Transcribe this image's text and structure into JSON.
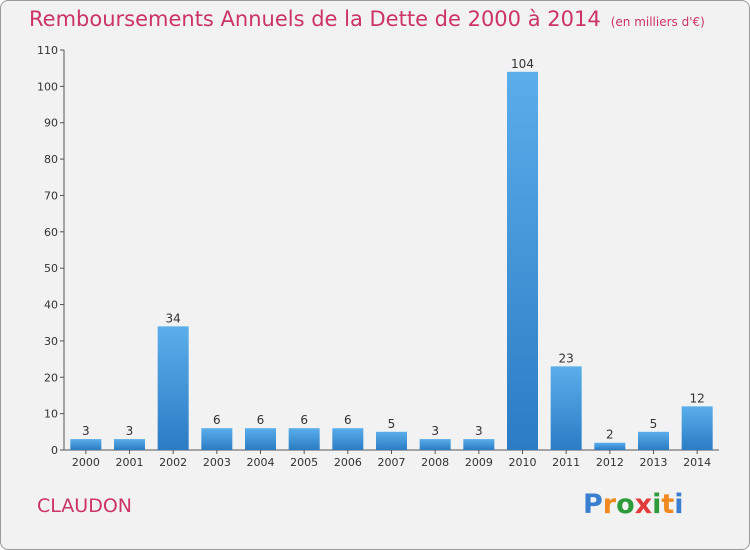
{
  "chart_data": {
    "type": "bar",
    "title": "Remboursements Annuels de la Dette de 2000 à 2014",
    "unit": "(en milliers d'€)",
    "categories": [
      "2000",
      "2001",
      "2002",
      "2003",
      "2004",
      "2005",
      "2006",
      "2007",
      "2008",
      "2009",
      "2010",
      "2011",
      "2012",
      "2013",
      "2014"
    ],
    "values": [
      3,
      3,
      34,
      6,
      6,
      6,
      6,
      5,
      3,
      3,
      104,
      23,
      2,
      5,
      12
    ],
    "ylim": [
      0,
      110
    ],
    "yticks": [
      0,
      10,
      20,
      30,
      40,
      50,
      60,
      70,
      80,
      90,
      100,
      110
    ],
    "grid": false,
    "bar_color": "#3a8fd6"
  },
  "commune": "CLAUDON",
  "logo": {
    "text": "Proxiti",
    "colors": [
      "#3a7fd0",
      "#f08a1e",
      "#2e9b3a",
      "#e23b3b",
      "#2e9b3a",
      "#f08a1e",
      "#3a7fd0"
    ]
  }
}
